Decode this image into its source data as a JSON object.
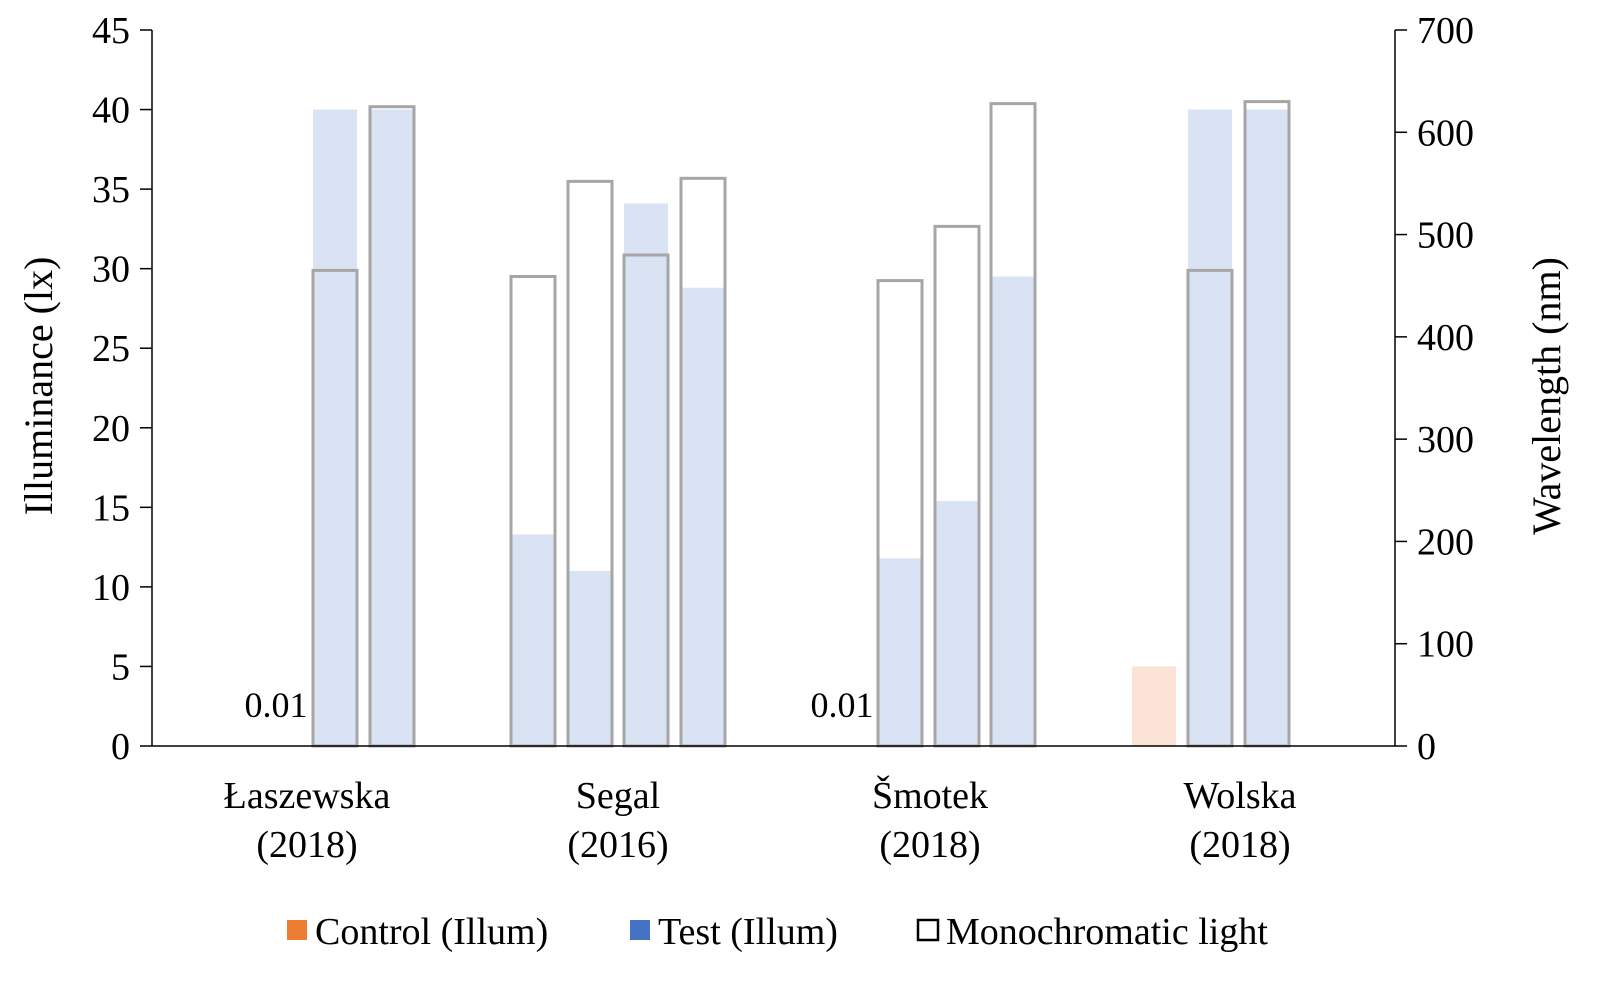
{
  "chart_data": {
    "type": "bar",
    "ylabel": "Illuminance (lx)",
    "y2label": "Wavelength (nm)",
    "ylim": [
      0,
      45
    ],
    "y2lim": [
      0,
      700
    ],
    "yticks": [
      "0",
      "5",
      "10",
      "15",
      "20",
      "25",
      "30",
      "35",
      "40",
      "45"
    ],
    "y2ticks": [
      "0",
      "100",
      "200",
      "300",
      "400",
      "500",
      "600",
      "700"
    ],
    "legend_position": "bottom",
    "grid": false,
    "colors": {
      "control_swatch": "#ED7D31",
      "test_swatch": "#4472C4",
      "control_fill": "#FBE3D5",
      "test_fill": "#DAE3F3",
      "outline": "#A6A6A6",
      "axis": "#000000"
    },
    "legend": [
      {
        "key": "control",
        "label": "Control (Illum)"
      },
      {
        "key": "test",
        "label": "Test (Illum)"
      },
      {
        "key": "mono",
        "label": "Monochromatic light"
      }
    ],
    "groups": [
      {
        "name": "Łaszewska",
        "year": "(2018)",
        "control": 0.01,
        "control_label": "0.01",
        "test": [
          40,
          40
        ],
        "mono_nm": [
          465,
          625
        ]
      },
      {
        "name": "Segal",
        "year": "(2016)",
        "control": null,
        "control_label": "",
        "test": [
          13.3,
          11,
          34.1,
          28.8
        ],
        "mono_nm": [
          459,
          552,
          480,
          555
        ]
      },
      {
        "name": "Šmotek",
        "year": "(2018)",
        "control": 0.01,
        "control_label": "0.01",
        "test": [
          11.8,
          15.4,
          29.5
        ],
        "mono_nm": [
          455,
          508,
          628
        ]
      },
      {
        "name": "Wolska",
        "year": "(2018)",
        "control": 5,
        "control_label": "",
        "test": [
          40,
          40
        ],
        "mono_nm": [
          465,
          630
        ]
      }
    ]
  }
}
